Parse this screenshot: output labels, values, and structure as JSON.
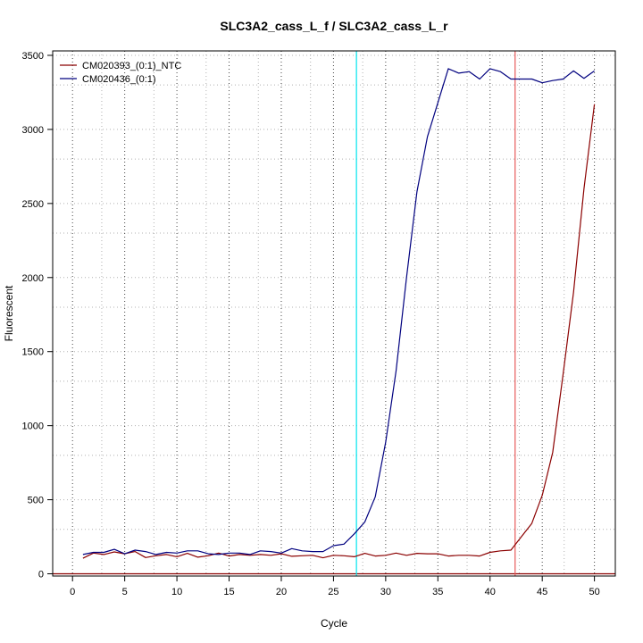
{
  "chart_data": {
    "type": "line",
    "title": "SLC3A2_cass_L_f / SLC3A2_cass_L_r",
    "xlabel": "Cycle",
    "ylabel": "Fluorescent",
    "xlim": [
      -1.9,
      52
    ],
    "ylim": [
      -15,
      3530
    ],
    "xticks": [
      0,
      5,
      10,
      15,
      20,
      25,
      30,
      35,
      40,
      45,
      50
    ],
    "yticks": [
      0,
      500,
      1000,
      1500,
      2000,
      2500,
      3000,
      3500
    ],
    "minor_grid_x": [
      2.8,
      7.8,
      12.8,
      17.8,
      22.8,
      27.8,
      32.8,
      37.8,
      42.8,
      47.1
    ],
    "minor_grid_y": [
      300,
      800,
      1300,
      1800,
      2300,
      2800,
      3300
    ],
    "grid": true,
    "legend_position": "top-left",
    "baseline": {
      "y": 0,
      "color": "#8b0000"
    },
    "threshold_lines": [
      {
        "x": 27.2,
        "color": "#00e5ee"
      },
      {
        "x": 42.4,
        "color": "#e85a5a"
      }
    ],
    "series": [
      {
        "name": "CM020393_(0:1)_NTC",
        "color": "#8b0000",
        "x": [
          1,
          2,
          3,
          4,
          5,
          6,
          7,
          8,
          9,
          10,
          11,
          12,
          13,
          14,
          15,
          16,
          17,
          18,
          19,
          20,
          21,
          22,
          23,
          24,
          25,
          26,
          27,
          28,
          29,
          30,
          31,
          32,
          33,
          34,
          35,
          36,
          37,
          38,
          39,
          40,
          41,
          42,
          43,
          44,
          45,
          46,
          47,
          48,
          49,
          50
        ],
        "y": [
          105,
          140,
          130,
          148,
          135,
          150,
          110,
          122,
          130,
          115,
          138,
          112,
          122,
          140,
          120,
          130,
          125,
          130,
          125,
          135,
          118,
          122,
          125,
          108,
          125,
          122,
          115,
          138,
          120,
          125,
          140,
          125,
          138,
          135,
          135,
          120,
          125,
          125,
          120,
          145,
          155,
          160,
          250,
          340,
          530,
          820,
          1350,
          1900,
          2600,
          3170
        ]
      },
      {
        "name": "CM020436_(0:1)",
        "color": "#00007f",
        "x": [
          1,
          2,
          3,
          4,
          5,
          6,
          7,
          8,
          9,
          10,
          11,
          12,
          13,
          14,
          15,
          16,
          17,
          18,
          19,
          20,
          21,
          22,
          23,
          24,
          25,
          26,
          27,
          28,
          29,
          30,
          31,
          32,
          33,
          34,
          35,
          36,
          37,
          38,
          39,
          40,
          41,
          42,
          43,
          44,
          45,
          46,
          47,
          48,
          49,
          50
        ],
        "y": [
          130,
          145,
          145,
          165,
          135,
          160,
          150,
          130,
          145,
          140,
          155,
          155,
          135,
          130,
          140,
          140,
          130,
          155,
          150,
          140,
          170,
          155,
          150,
          150,
          190,
          200,
          270,
          350,
          520,
          890,
          1370,
          2000,
          2580,
          2950,
          3180,
          3410,
          3380,
          3390,
          3340,
          3410,
          3390,
          3340,
          3340,
          3340,
          3315,
          3330,
          3340,
          3395,
          3345,
          3395
        ]
      }
    ]
  }
}
